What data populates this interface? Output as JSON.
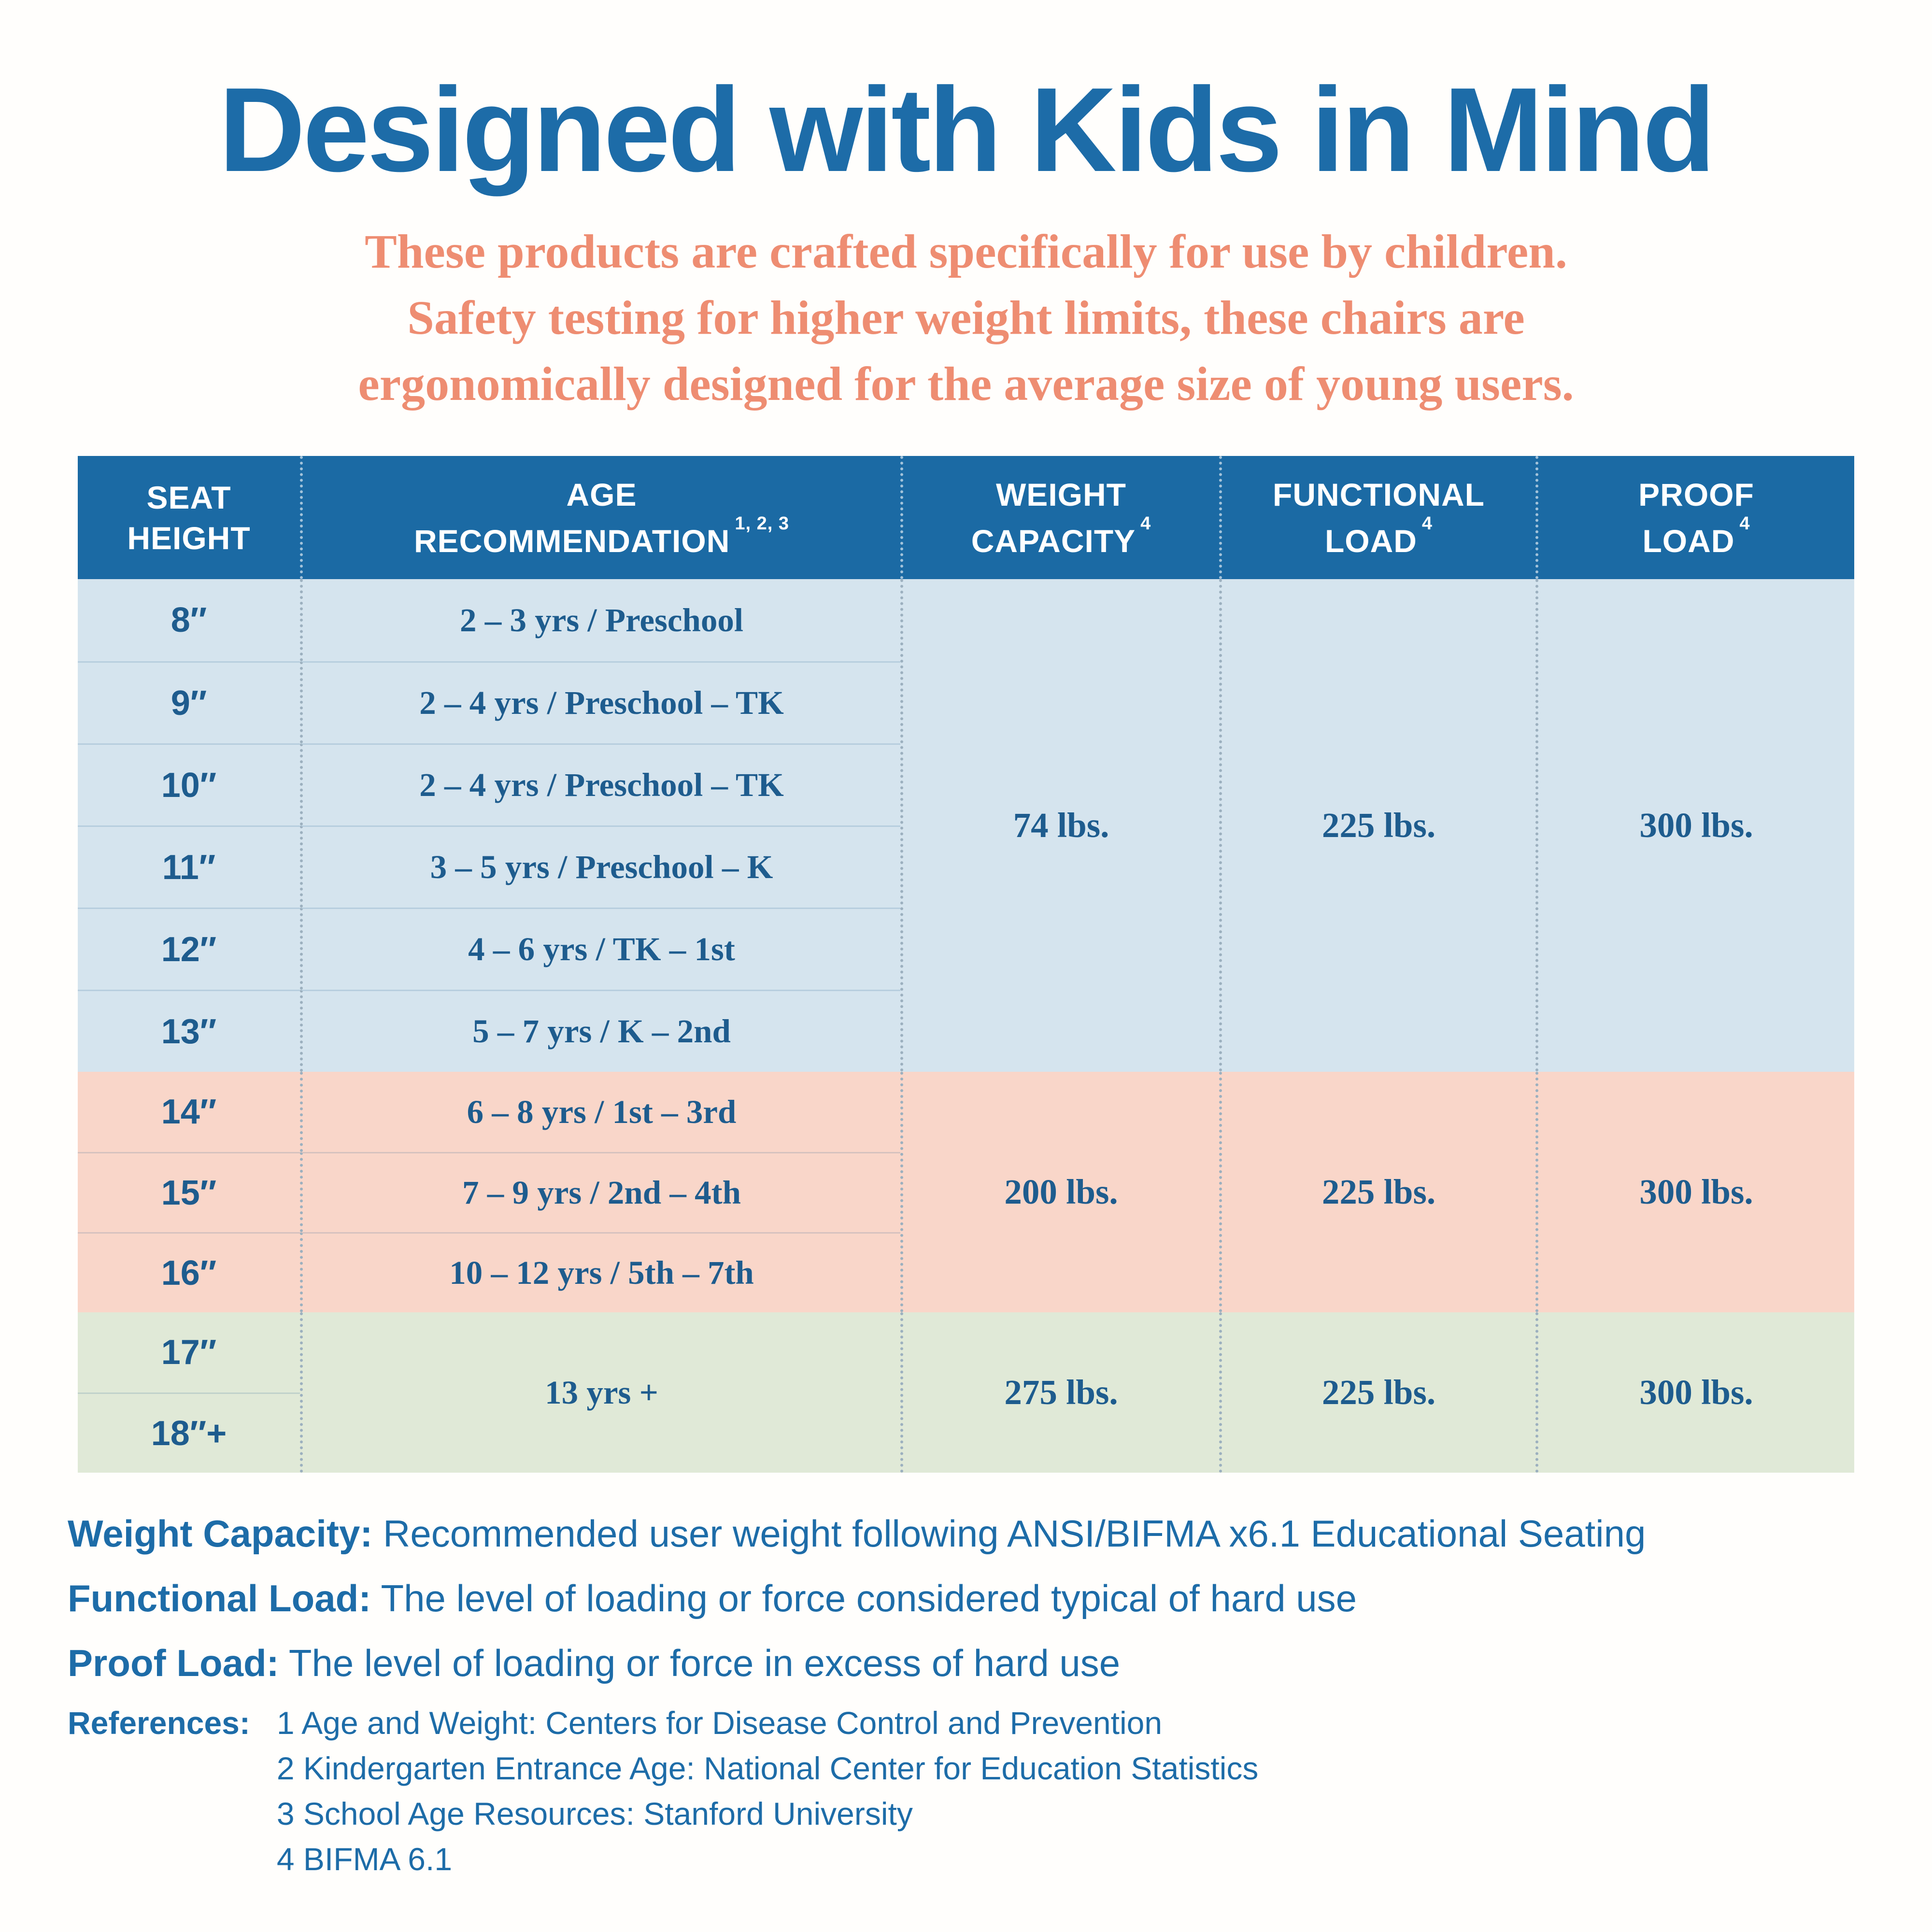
{
  "page": {
    "title": "Designed with Kids in Mind",
    "subtitle_lines": [
      "These products are crafted specifically for use by children.",
      "Safety testing for higher weight limits, these chairs are",
      "ergonomically designed for the average size of young users."
    ]
  },
  "table": {
    "headers": [
      {
        "l1": "SEAT",
        "l2": "HEIGHT"
      },
      {
        "l1": "AGE",
        "l2": "RECOMMENDATION",
        "sup": "1, 2, 3"
      },
      {
        "l1": "WEIGHT",
        "l2": "CAPACITY",
        "sup": "4"
      },
      {
        "l1": "FUNCTIONAL",
        "l2": "LOAD",
        "sup": "4"
      },
      {
        "l1": "PROOF",
        "l2": "LOAD",
        "sup": "4"
      }
    ],
    "groups": [
      {
        "rows": [
          {
            "height": "8″",
            "age": "2 – 3 yrs / Preschool"
          },
          {
            "height": "9″",
            "age": "2 – 4 yrs / Preschool – TK"
          },
          {
            "height": "10″",
            "age": "2 – 4 yrs / Preschool – TK"
          },
          {
            "height": "11″",
            "age": "3 – 5 yrs / Preschool – K"
          },
          {
            "height": "12″",
            "age": "4 – 6 yrs / TK – 1st"
          },
          {
            "height": "13″",
            "age": "5 – 7 yrs / K – 2nd"
          }
        ],
        "weight_capacity": "74 lbs.",
        "functional_load": "225 lbs.",
        "proof_load": "300 lbs."
      },
      {
        "rows": [
          {
            "height": "14″",
            "age": "6 – 8 yrs / 1st – 3rd"
          },
          {
            "height": "15″",
            "age": "7 – 9 yrs / 2nd – 4th"
          },
          {
            "height": "16″",
            "age": "10 – 12 yrs / 5th – 7th"
          }
        ],
        "weight_capacity": "200 lbs.",
        "functional_load": "225 lbs.",
        "proof_load": "300 lbs."
      },
      {
        "rows": [
          {
            "height": "17″"
          },
          {
            "height": "18″+"
          }
        ],
        "age": "13 yrs +",
        "weight_capacity": "275 lbs.",
        "functional_load": "225 lbs.",
        "proof_load": "300 lbs."
      }
    ]
  },
  "definitions": [
    {
      "term": "Weight Capacity:",
      "text": "Recommended user weight following ANSI/BIFMA x6.1 Educational Seating"
    },
    {
      "term": "Functional Load:",
      "text": "The level of loading or force considered typical of hard use"
    },
    {
      "term": "Proof Load:",
      "text": "The level of loading or force in excess of hard use"
    }
  ],
  "references": {
    "label": "References:",
    "items": [
      "1 Age and Weight: Centers for Disease Control and Prevention",
      "2 Kindergarten Entrance Age: National Center for Education Statistics",
      "3 School Age Resources: Stanford University",
      "4 BIFMA 6.1"
    ]
  },
  "colors": {
    "title_blue": "#1d6ca8",
    "header_bg": "#1b6aa4",
    "cell_text": "#1e5c8e",
    "salmon_text": "#ee8d72",
    "row_blue": "#d5e4ee",
    "row_salmon": "#f9d6c9",
    "row_green": "#e0e9d7",
    "page_bg": "#fffefc",
    "grid_dot": "#9cb0bf"
  }
}
